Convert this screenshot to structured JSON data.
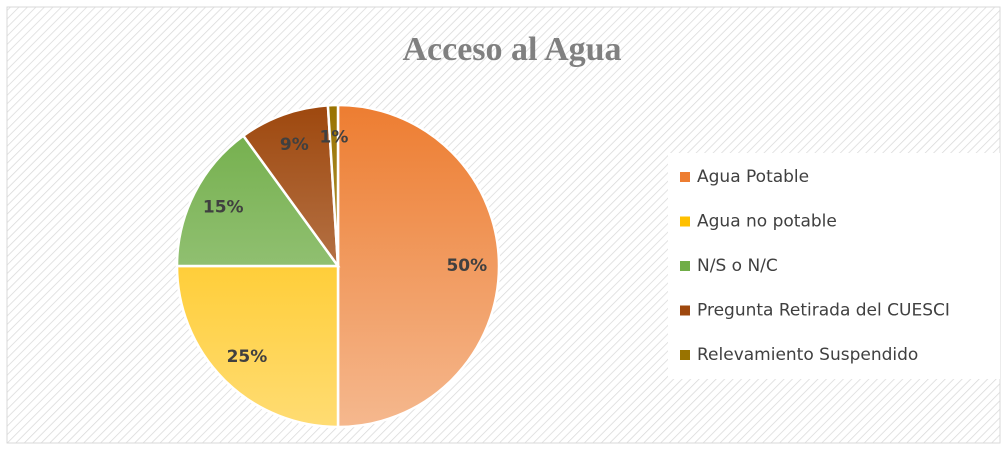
{
  "chart_data": {
    "type": "pie",
    "title": "Acceso al Agua",
    "categories": [
      "Agua Potable",
      "Agua no potable",
      "N/S o N/C",
      "Pregunta Retirada del CUESCI",
      "Relevamiento Suspendido"
    ],
    "values": [
      50,
      25,
      15,
      9,
      1
    ],
    "value_labels": [
      "50%",
      "25%",
      "15%",
      "9%",
      "1%"
    ],
    "colors": [
      "#ed7d31",
      "#ffc000",
      "#70ad47",
      "#9e480e",
      "#997300"
    ],
    "legend": "right"
  }
}
